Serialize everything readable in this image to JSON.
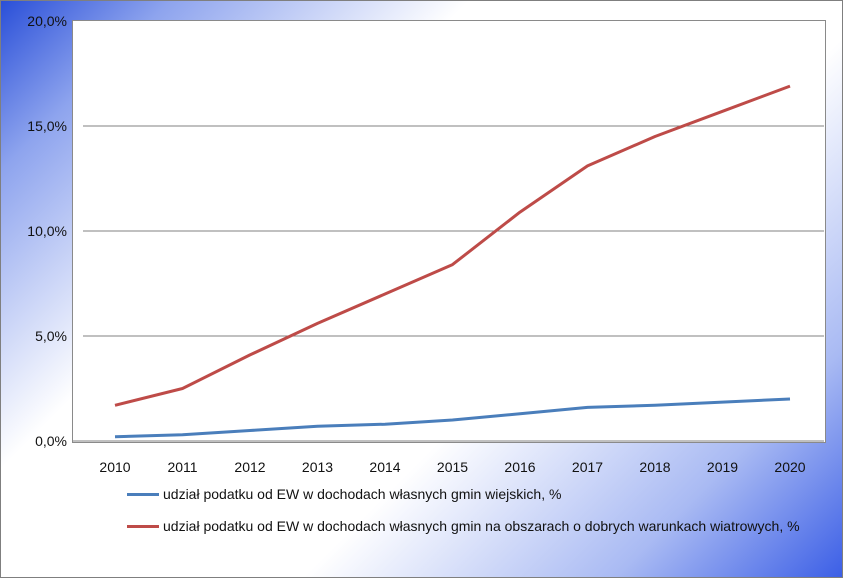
{
  "chart_data": {
    "type": "line",
    "x": [
      "2010",
      "2011",
      "2012",
      "2013",
      "2014",
      "2015",
      "2016",
      "2017",
      "2018",
      "2019",
      "2020"
    ],
    "ylim": [
      0,
      20
    ],
    "yticks": [
      "0,0%",
      "5,0%",
      "10,0%",
      "15,0%",
      "20,0%"
    ],
    "grid": true,
    "legend_position": "bottom",
    "series": [
      {
        "name": "udział podatku od EW w dochodach własnych gmin wiejskich, %",
        "color": "#4a7ebb",
        "values": [
          0.2,
          0.3,
          0.5,
          0.7,
          0.8,
          1.0,
          1.3,
          1.6,
          1.7,
          1.85,
          2.0
        ]
      },
      {
        "name": "udział podatku od EW w dochodach własnych gmin na obszarach o dobrych warunkach wiatrowych, %",
        "color": "#be4b48",
        "values": [
          1.7,
          2.5,
          4.1,
          5.6,
          7.0,
          8.4,
          10.9,
          13.1,
          14.5,
          15.7,
          16.9
        ]
      }
    ]
  }
}
